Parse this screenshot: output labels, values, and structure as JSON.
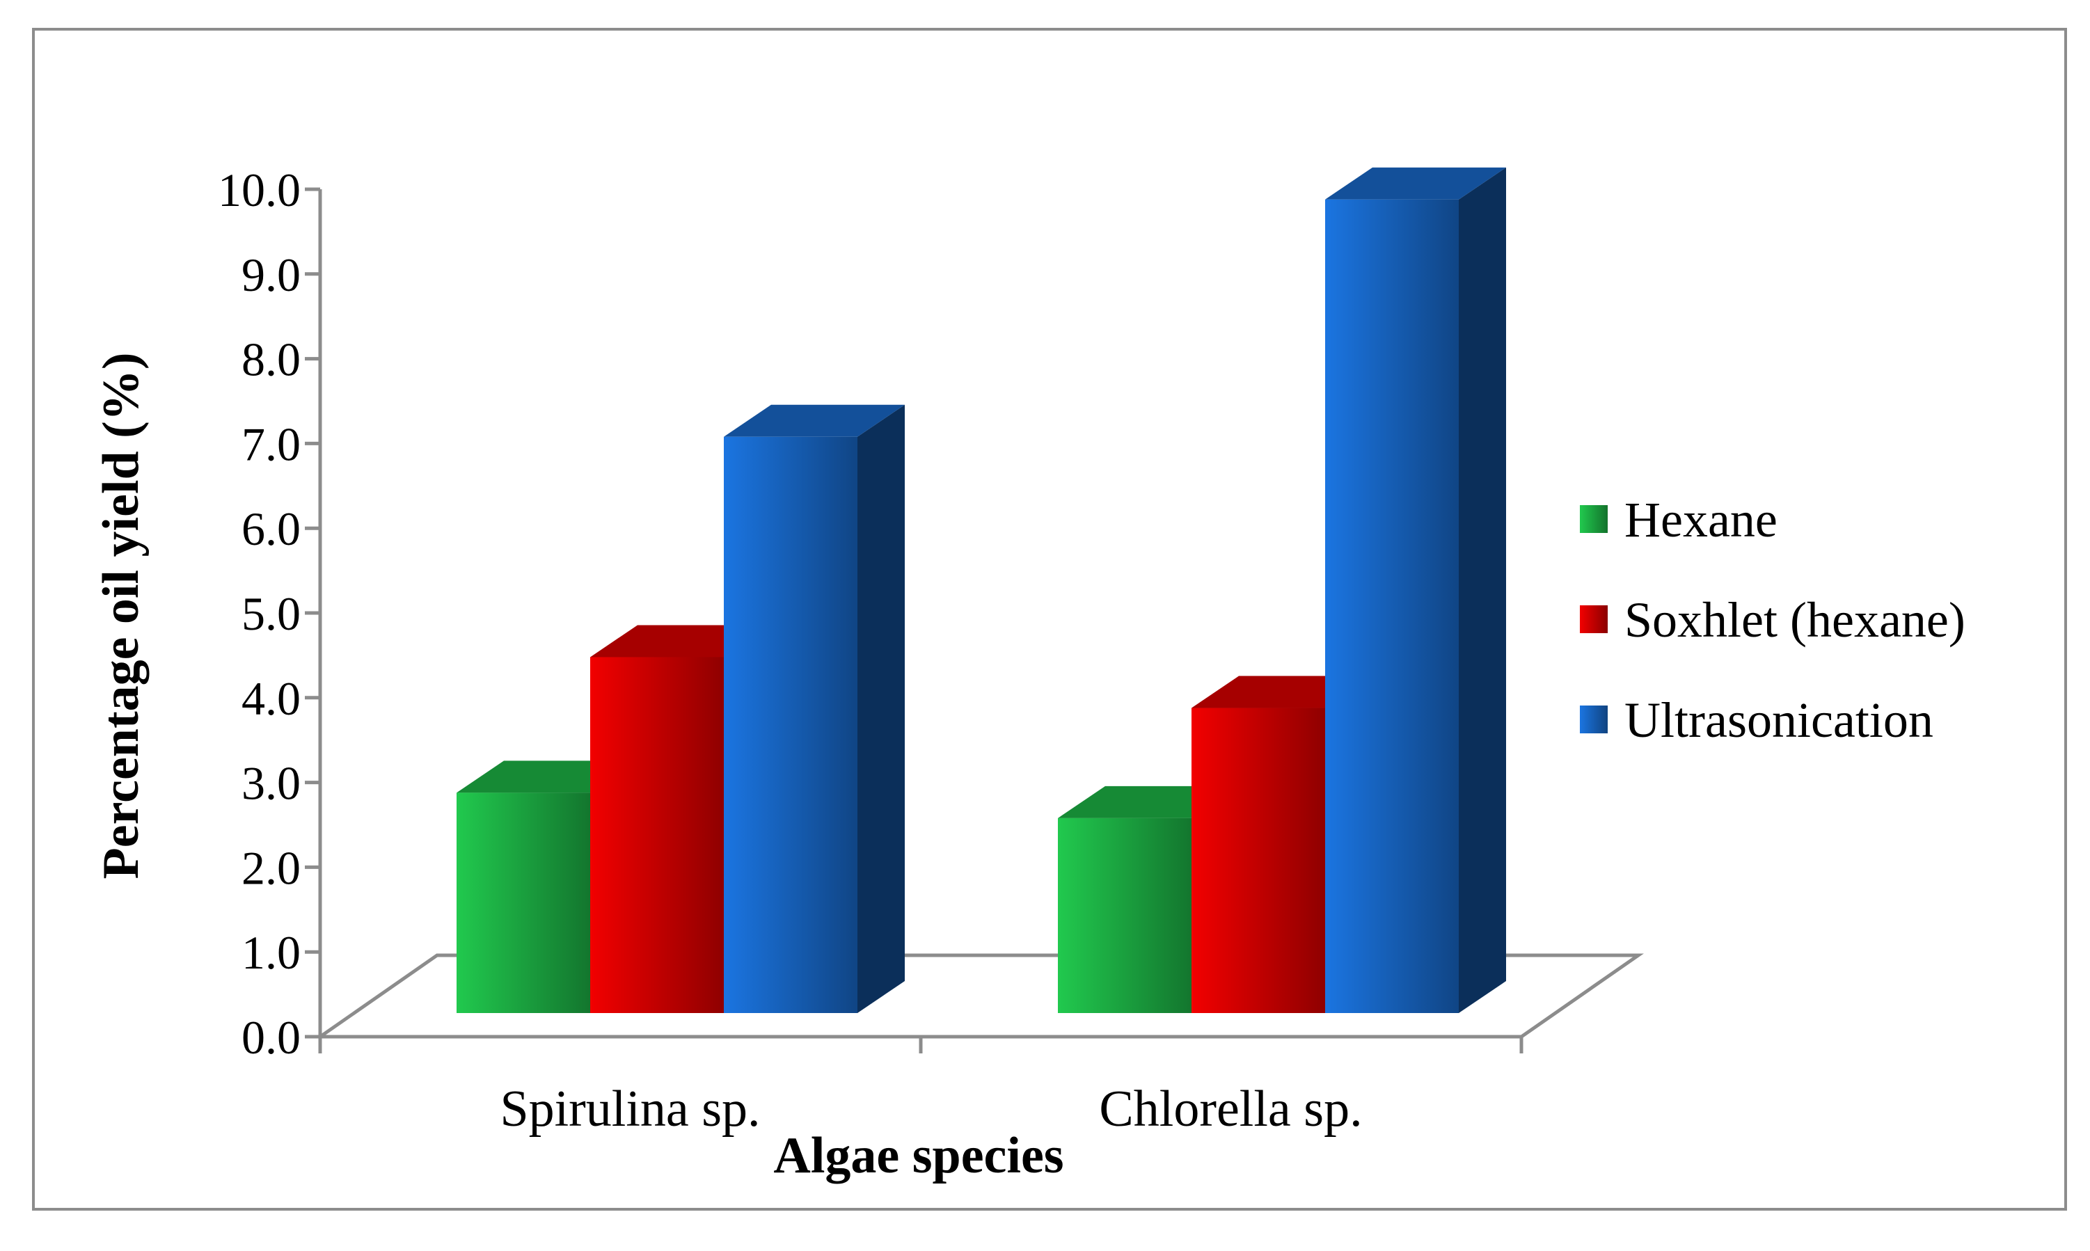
{
  "chart_data": {
    "type": "bar",
    "title": "",
    "xlabel": "Algae species",
    "ylabel": "Percentage oil yield (%)",
    "ylim": [
      0,
      10
    ],
    "ytick_step": 1,
    "yticks": [
      "0.0",
      "1.0",
      "2.0",
      "3.0",
      "4.0",
      "5.0",
      "6.0",
      "7.0",
      "8.0",
      "9.0",
      "10.0"
    ],
    "categories": [
      "Spirulina sp.",
      "Chlorella sp."
    ],
    "series": [
      {
        "name": "Hexane",
        "color": "#1fbf4a",
        "values": [
          2.6,
          2.3
        ]
      },
      {
        "name": "Soxhlet (hexane)",
        "color": "#e60000",
        "values": [
          4.2,
          3.6
        ]
      },
      {
        "name": "Ultrasonication",
        "color": "#1a6fd6",
        "values": [
          6.8,
          9.6
        ]
      }
    ],
    "legend_position": "right",
    "grid": false,
    "style": "3d-column"
  }
}
